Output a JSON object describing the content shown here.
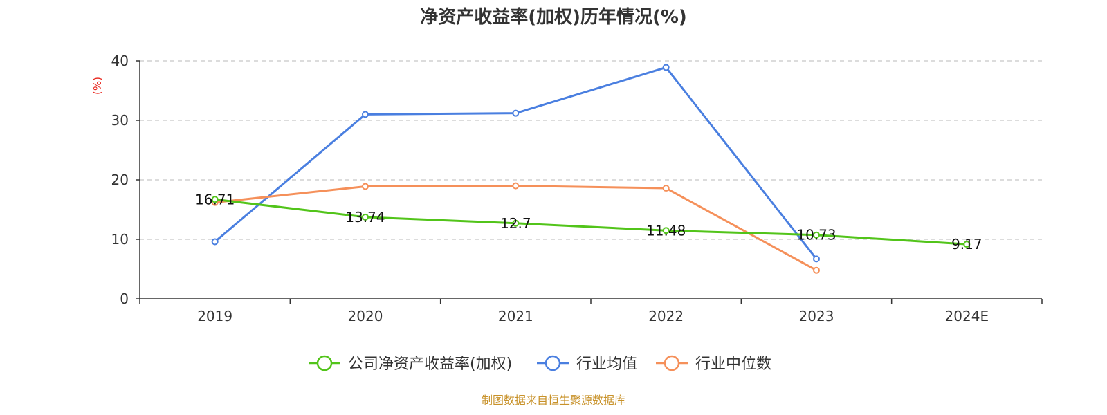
{
  "chart_data": {
    "type": "line",
    "title": "净资产收益率(加权)历年情况(%)",
    "ylabel": "(%)",
    "xlabel": "",
    "categories": [
      "2019",
      "2020",
      "2021",
      "2022",
      "2023",
      "2024E"
    ],
    "ylim": [
      0,
      40
    ],
    "yticks": [
      0,
      10,
      20,
      30,
      40
    ],
    "grid": true,
    "legend_position": "bottom-center",
    "series": [
      {
        "name": "公司净资产收益率(加权)",
        "color": "#52c41a",
        "values": [
          16.71,
          13.74,
          12.7,
          11.48,
          10.73,
          9.17
        ],
        "labels": [
          "16.71",
          "13.74",
          "12.7",
          "11.48",
          "10.73",
          "9.17"
        ]
      },
      {
        "name": "行业均值",
        "color": "#4a7fe0",
        "values": [
          9.6,
          31.0,
          31.2,
          38.9,
          6.7,
          null
        ]
      },
      {
        "name": "行业中位数",
        "color": "#f5905a",
        "values": [
          16.2,
          18.9,
          19.0,
          18.6,
          4.8,
          null
        ]
      }
    ],
    "ylabel_color": "#e8231a"
  },
  "footer": {
    "credit": "制图数据来自恒生聚源数据库",
    "credit_color": "#c8922a"
  }
}
